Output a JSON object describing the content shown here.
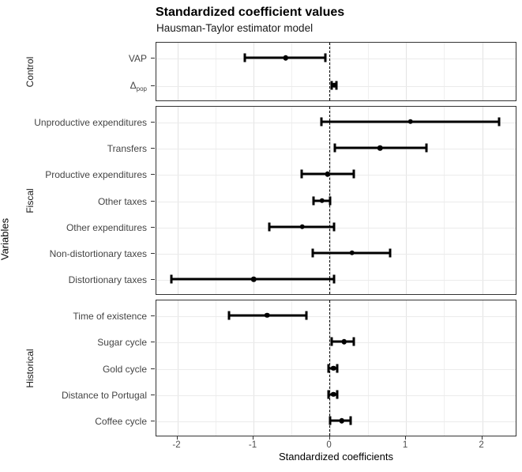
{
  "title": "Standardized coefficient values",
  "subtitle": "Hausman-Taylor estimator model",
  "axes": {
    "x_title": "Standardized coefficients",
    "y_title": "Variables"
  },
  "chart_data": {
    "type": "scatter",
    "subtype": "coefficient-plot-with-error-bars",
    "title": "Standardized coefficient values",
    "subtitle": "Hausman-Taylor estimator model",
    "xlabel": "Standardized coefficients",
    "ylabel": "Variables",
    "xlim": [
      -2.275,
      2.46
    ],
    "x_major_ticks": [
      -2,
      -1,
      0,
      1,
      2
    ],
    "x_tick_labels": [
      "-2",
      "-1",
      "0",
      "1",
      "2"
    ],
    "x_minor_ticks": [
      -1.5,
      -0.5,
      0.5,
      1.5
    ],
    "reference_line": {
      "x": 0,
      "style": "dashed",
      "color": "#000000"
    },
    "legend_position": "none",
    "grid": true,
    "facets_position": "left",
    "panels": [
      {
        "label": "Control",
        "rows": [
          {
            "label": "VAP",
            "estimate": -0.57,
            "ci_low": -1.1,
            "ci_high": -0.05
          },
          {
            "label": "Δ_pop",
            "estimate": 0.07,
            "ci_low": 0.04,
            "ci_high": 0.1
          }
        ]
      },
      {
        "label": "Fiscal",
        "rows": [
          {
            "label": "Unproductive expenditures",
            "estimate": 1.07,
            "ci_low": -0.1,
            "ci_high": 2.23
          },
          {
            "label": "Transfers",
            "estimate": 0.67,
            "ci_low": 0.08,
            "ci_high": 1.28
          },
          {
            "label": "Productive expenditures",
            "estimate": -0.02,
            "ci_low": -0.36,
            "ci_high": 0.33
          },
          {
            "label": "Other taxes",
            "estimate": -0.09,
            "ci_low": -0.2,
            "ci_high": 0.01
          },
          {
            "label": "Other expenditures",
            "estimate": -0.35,
            "ci_low": -0.78,
            "ci_high": 0.07
          },
          {
            "label": "Non-distortionary taxes",
            "estimate": 0.3,
            "ci_low": -0.21,
            "ci_high": 0.8
          },
          {
            "label": "Distortionary taxes",
            "estimate": -0.99,
            "ci_low": -2.07,
            "ci_high": 0.07
          }
        ]
      },
      {
        "label": "Historical",
        "rows": [
          {
            "label": "Time of existence",
            "estimate": -0.81,
            "ci_low": -1.31,
            "ci_high": -0.3
          },
          {
            "label": "Sugar cycle",
            "estimate": 0.2,
            "ci_low": 0.04,
            "ci_high": 0.33
          },
          {
            "label": "Gold cycle",
            "estimate": 0.06,
            "ci_low": -0.01,
            "ci_high": 0.11
          },
          {
            "label": "Distance to Portugal",
            "estimate": 0.06,
            "ci_low": -0.01,
            "ci_high": 0.11
          },
          {
            "label": "Coffee cycle",
            "estimate": 0.17,
            "ci_low": 0.01,
            "ci_high": 0.28
          }
        ]
      }
    ],
    "colors": {
      "point": "#000000",
      "error_bar": "#000000",
      "panel_border": "#333333",
      "grid_major": "#e3e3e3",
      "grid_minor": "#f0f0f0",
      "tick_label": "#4d4d4d",
      "background": "#ffffff"
    }
  }
}
